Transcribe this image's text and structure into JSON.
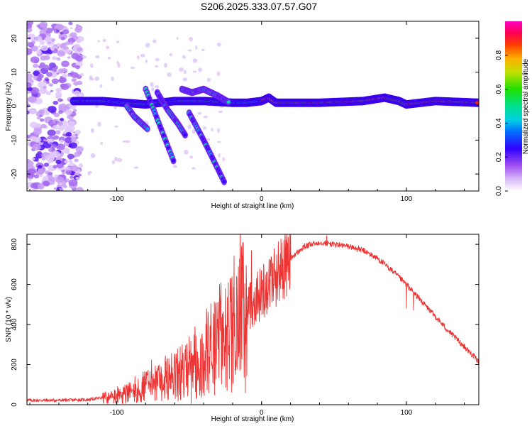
{
  "title": "S206.2025.333.07.57.G07",
  "chart_data": [
    {
      "type": "heatmap",
      "panel": "spectrogram",
      "xlabel": "Height of straight line (km)",
      "ylabel": "Frequency (Hz)",
      "xlim": [
        -162,
        150
      ],
      "ylim": [
        -25,
        25
      ],
      "xticks": [
        -100,
        0,
        100
      ],
      "yticks": [
        -20,
        -10,
        0,
        10,
        20
      ],
      "colorbar": {
        "label": "Normalized spectral amplitude",
        "range": [
          0,
          1
        ],
        "ticks": [
          "0.0",
          "0.2",
          "0.4",
          "0.6",
          "0.8"
        ]
      },
      "tracks": [
        {
          "name": "main-horizontal-track",
          "points": [
            [
              -130,
              1.5
            ],
            [
              -110,
              1.5
            ],
            [
              -95,
              1.0
            ],
            [
              -80,
              0.5
            ],
            [
              -60,
              1.5
            ],
            [
              -40,
              1.5
            ],
            [
              -20,
              1.0
            ],
            [
              -10,
              1.0
            ],
            [
              0,
              1.5
            ],
            [
              5,
              2.5
            ],
            [
              10,
              1.0
            ],
            [
              40,
              1.0
            ],
            [
              70,
              1.5
            ],
            [
              85,
              2.5
            ],
            [
              95,
              1.5
            ],
            [
              100,
              0.5
            ],
            [
              120,
              1.5
            ],
            [
              150,
              1.0
            ]
          ]
        },
        {
          "name": "diagonal-track-1",
          "points": [
            [
              -93,
              0
            ],
            [
              -88,
              -3
            ],
            [
              -83,
              -5
            ],
            [
              -78,
              -7
            ]
          ]
        },
        {
          "name": "diagonal-track-2",
          "points": [
            [
              -72,
              4
            ],
            [
              -65,
              -1
            ],
            [
              -58,
              -5
            ],
            [
              -52,
              -9
            ]
          ]
        },
        {
          "name": "diagonal-track-3",
          "points": [
            [
              -80,
              5
            ],
            [
              -70,
              -6
            ],
            [
              -60,
              -17
            ]
          ]
        },
        {
          "name": "diagonal-track-4",
          "points": [
            [
              -50,
              -2
            ],
            [
              -40,
              -10
            ],
            [
              -25,
              -23
            ]
          ]
        },
        {
          "name": "cluster-track",
          "points": [
            [
              -55,
              5
            ],
            [
              -48,
              4
            ],
            [
              -40,
              5
            ],
            [
              -30,
              3
            ],
            [
              -22,
              1
            ]
          ]
        }
      ]
    },
    {
      "type": "line",
      "panel": "snr",
      "xlabel": "Height of straight line (km)",
      "ylabel": "SNR (10 * v/v)",
      "xlim": [
        -162,
        150
      ],
      "ylim": [
        0,
        850
      ],
      "xticks": [
        -100,
        0,
        100
      ],
      "yticks": [
        0,
        200,
        400,
        600,
        800
      ],
      "series": [
        {
          "name": "SNR",
          "color": "#ee3333",
          "envelope_x": [
            -162,
            -140,
            -120,
            -110,
            -100,
            -90,
            -80,
            -70,
            -60,
            -50,
            -40,
            -30,
            -20,
            -10,
            0,
            10,
            20,
            30,
            40,
            50,
            60,
            70,
            80,
            90,
            100,
            110,
            120,
            130,
            140,
            150
          ],
          "envelope_y": [
            22,
            22,
            25,
            35,
            50,
            65,
            90,
            110,
            140,
            180,
            220,
            300,
            390,
            480,
            560,
            650,
            730,
            790,
            810,
            800,
            790,
            770,
            730,
            670,
            600,
            520,
            440,
            360,
            290,
            215
          ],
          "spikes": [
            {
              "x": -76,
              "y": 225
            },
            {
              "x": -70,
              "y": 160
            },
            {
              "x": -58,
              "y": 280
            },
            {
              "x": -50,
              "y": 340
            },
            {
              "x": -46,
              "y": 390
            },
            {
              "x": -38,
              "y": 480
            },
            {
              "x": -35,
              "y": 505
            },
            {
              "x": -32,
              "y": 470
            },
            {
              "x": -28,
              "y": 610
            },
            {
              "x": -25,
              "y": 580
            },
            {
              "x": -21,
              "y": 630
            },
            {
              "x": -16,
              "y": 690
            },
            {
              "x": -13,
              "y": 810
            },
            {
              "x": -7,
              "y": 770
            },
            {
              "x": 0,
              "y": 670
            },
            {
              "x": 6,
              "y": 720
            },
            {
              "x": 45,
              "y": 845
            },
            {
              "x": 100,
              "y": 480
            },
            {
              "x": 105,
              "y": 470
            }
          ]
        }
      ]
    }
  ]
}
